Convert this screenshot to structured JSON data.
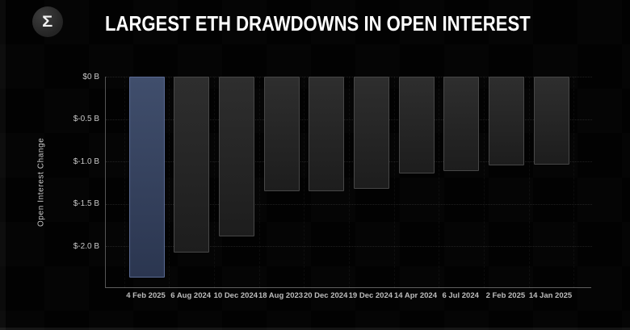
{
  "header": {
    "title": "LARGEST ETH DRAWDOWNS IN OPEN INTEREST",
    "logo_glyph": "Σ"
  },
  "chart_data": {
    "type": "bar",
    "title": "LARGEST ETH DRAWDOWNS IN OPEN INTEREST",
    "ylabel": "Open Interest Change",
    "xlabel": "",
    "unit": "$ billions",
    "categories": [
      "4 Feb 2025",
      "6 Aug 2024",
      "10 Dec 2024",
      "18 Aug 2023",
      "20 Dec 2024",
      "19 Dec 2024",
      "14 Apr 2024",
      "6 Jul 2024",
      "2 Feb 2025",
      "14 Jan 2025"
    ],
    "values": [
      -2.37,
      -2.07,
      -1.88,
      -1.35,
      -1.35,
      -1.32,
      -1.14,
      -1.11,
      -1.05,
      -1.04
    ],
    "highlight_index": 0,
    "ylim": [
      -2.49,
      0
    ],
    "yticks": [
      0,
      -0.5,
      -1.0,
      -1.5,
      -2.0
    ],
    "ytick_labels": [
      "$0 B",
      "$-0.5 B",
      "$-1.0 B",
      "$-1.5 B",
      "$-2.0 B"
    ],
    "grid": true,
    "legend": "none",
    "colors": {
      "background": "#020202",
      "highlight_bar_top": "#404e6c",
      "highlight_bar_bottom": "#2b3650",
      "highlight_bar_border": "#5a6a93",
      "bar_top": "#2e2e2e",
      "bar_bottom": "#1d1d1d",
      "bar_border": "#474747",
      "axis_line": "#565656",
      "ytick_text": "#c9c9c9",
      "xtick_text": "#bdbdbd",
      "title_text": "#ffffff"
    }
  }
}
